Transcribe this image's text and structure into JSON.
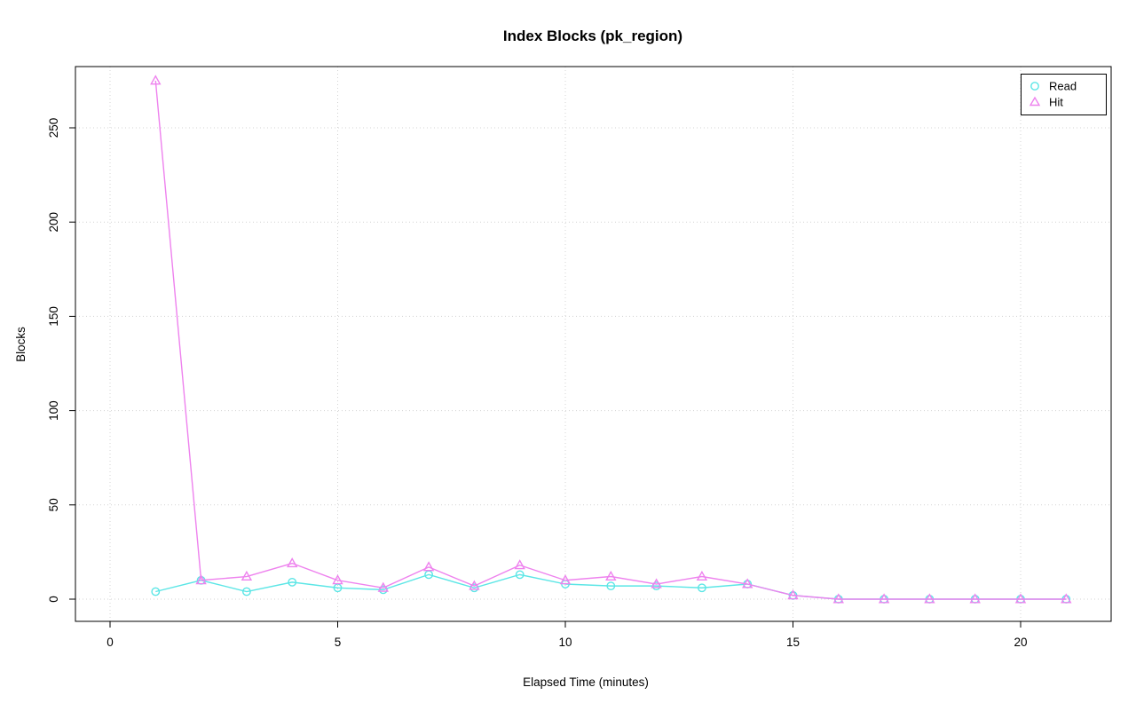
{
  "chart_data": {
    "type": "line",
    "title": "Index Blocks (pk_region)",
    "xlabel": "Elapsed Time (minutes)",
    "ylabel": "Blocks",
    "x": [
      1,
      2,
      3,
      4,
      5,
      6,
      7,
      8,
      9,
      10,
      11,
      12,
      13,
      14,
      15,
      16,
      17,
      18,
      19,
      20,
      21
    ],
    "series": [
      {
        "name": "Read",
        "marker": "circle",
        "color": "#5CE6E6",
        "values": [
          4,
          10,
          4,
          9,
          6,
          5,
          13,
          6,
          13,
          8,
          7,
          7,
          6,
          8,
          2,
          0,
          0,
          0,
          0,
          0,
          0
        ]
      },
      {
        "name": "Hit",
        "marker": "triangle",
        "color": "#EE82EE",
        "values": [
          275,
          10,
          12,
          19,
          10,
          6,
          17,
          7,
          18,
          10,
          12,
          8,
          12,
          8,
          2,
          0,
          0,
          0,
          0,
          0,
          0
        ]
      }
    ],
    "xticks": [
      0,
      5,
      10,
      15,
      20
    ],
    "yticks": [
      0,
      50,
      100,
      150,
      200,
      250
    ],
    "xlim": [
      0,
      21.8
    ],
    "ylim": [
      0,
      280
    ],
    "grid": true,
    "grid_style": "dotted",
    "grid_color": "#D3D3D3",
    "legend_position": "top-right"
  }
}
